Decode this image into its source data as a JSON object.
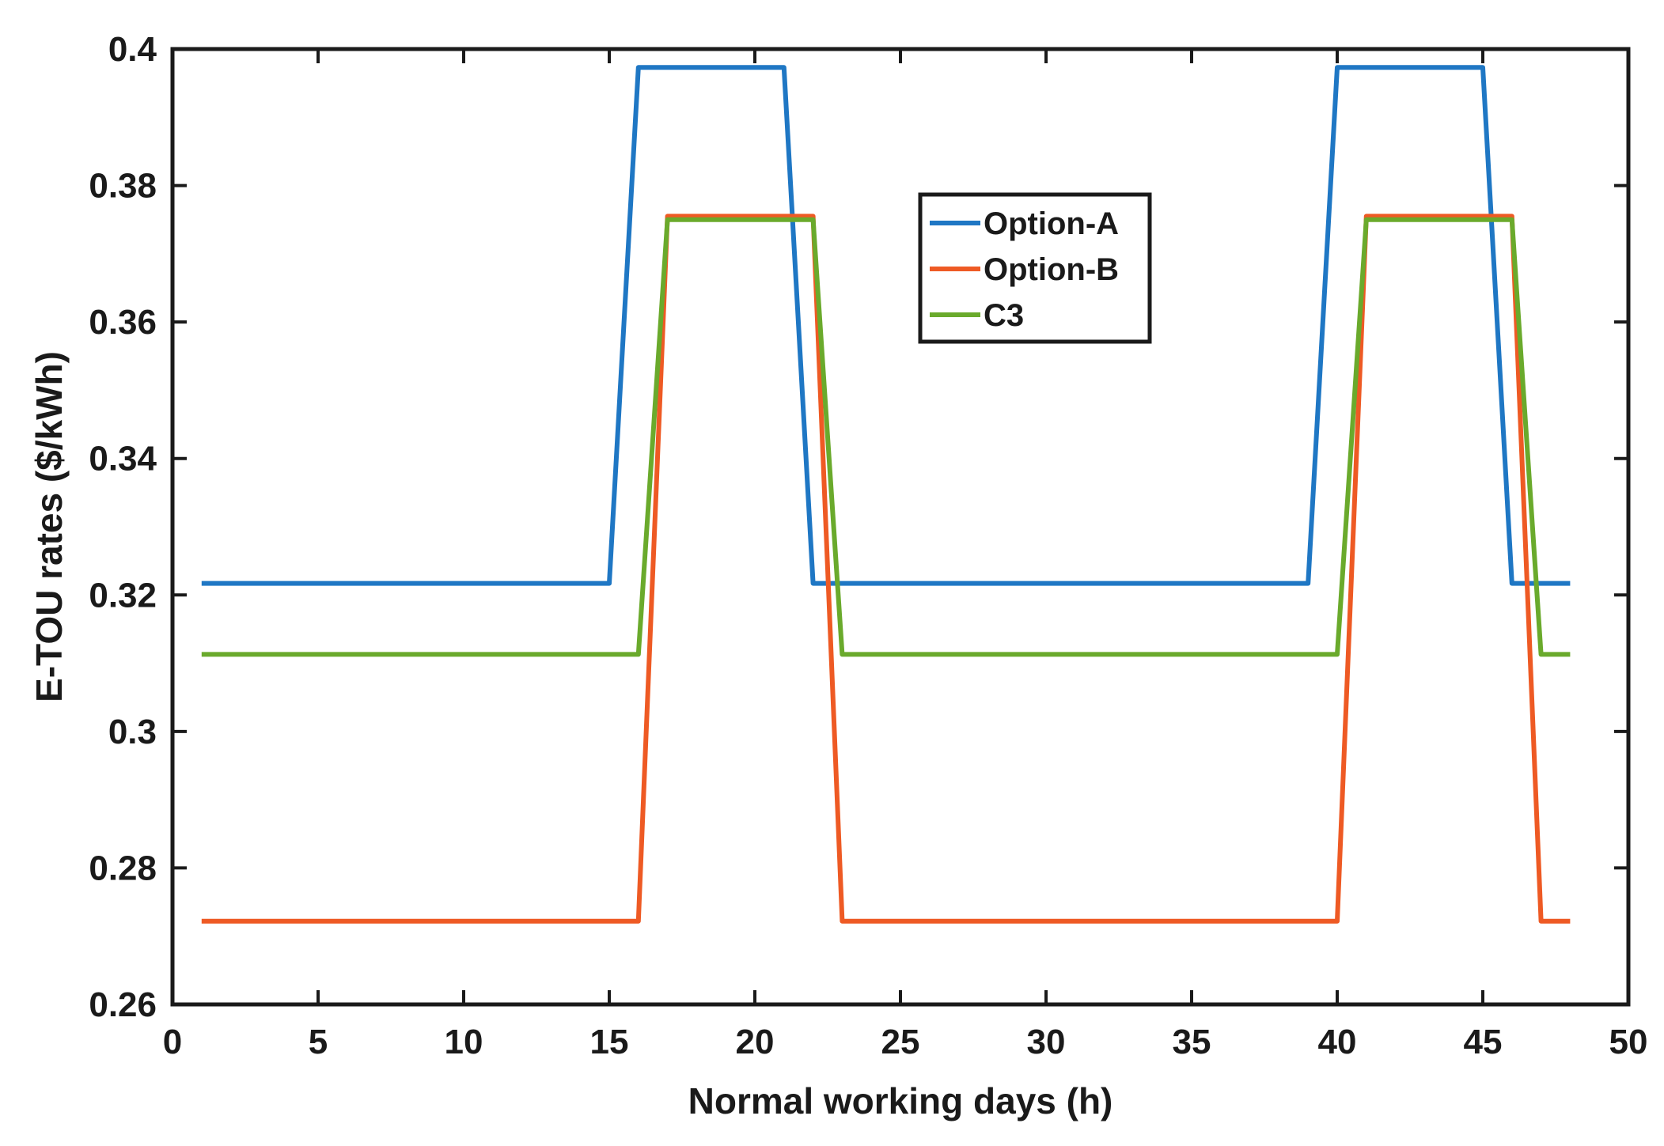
{
  "chart_data": {
    "type": "line",
    "title": "",
    "xlabel": "Normal working days (h)",
    "ylabel": "E-TOU rates ($/kWh)",
    "xlim": [
      0,
      50
    ],
    "ylim": [
      0.26,
      0.4
    ],
    "xticks": [
      0,
      5,
      10,
      15,
      20,
      25,
      30,
      35,
      40,
      45,
      50
    ],
    "xtick_labels": [
      "0",
      "5",
      "10",
      "15",
      "20",
      "25",
      "30",
      "35",
      "40",
      "45",
      "50"
    ],
    "yticks": [
      0.26,
      0.28,
      0.3,
      0.32,
      0.34,
      0.36,
      0.38,
      0.4
    ],
    "ytick_labels": [
      "0.26",
      "0.28",
      "0.3",
      "0.32",
      "0.34",
      "0.36",
      "0.38",
      "0.4"
    ],
    "grid": false,
    "legend_position": "top-center",
    "series": [
      {
        "name": "Option-A",
        "color": "#1f77c4",
        "x": [
          1,
          15,
          16,
          21,
          22,
          39,
          40,
          45,
          46,
          48
        ],
        "y": [
          0.3217,
          0.3217,
          0.3973,
          0.3973,
          0.3217,
          0.3217,
          0.3973,
          0.3973,
          0.3217,
          0.3217
        ]
      },
      {
        "name": "Option-B",
        "color": "#ee5a24",
        "x": [
          1,
          16,
          17,
          22,
          23,
          40,
          41,
          46,
          47,
          48
        ],
        "y": [
          0.2722,
          0.2722,
          0.3755,
          0.3755,
          0.2722,
          0.2722,
          0.3755,
          0.3755,
          0.2722,
          0.2722
        ]
      },
      {
        "name": "C3",
        "color": "#6aaa2c",
        "x": [
          1,
          16,
          17,
          22,
          23,
          40,
          41,
          46,
          47,
          48
        ],
        "y": [
          0.3113,
          0.3113,
          0.375,
          0.375,
          0.3113,
          0.3113,
          0.375,
          0.375,
          0.3113,
          0.3113
        ]
      }
    ]
  }
}
